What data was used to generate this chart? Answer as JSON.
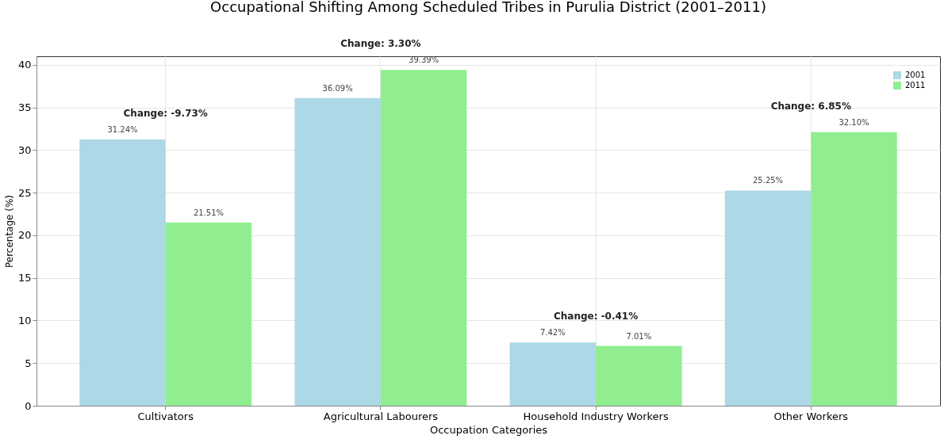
{
  "chart_data": {
    "type": "bar",
    "title": "Occupational Shifting Among Scheduled Tribes in Purulia District (2001–2011)",
    "xlabel": "Occupation Categories",
    "ylabel": "Percentage (%)",
    "categories": [
      "Cultivators",
      "Agricultural Labourers",
      "Household Industry Workers",
      "Other Workers"
    ],
    "series": [
      {
        "name": "2001",
        "color": "#add8e6",
        "values": [
          31.24,
          36.09,
          7.42,
          25.25
        ],
        "value_labels": [
          "31.24%",
          "36.09%",
          "7.42%",
          "25.25%"
        ]
      },
      {
        "name": "2011",
        "color": "#90ee90",
        "values": [
          21.51,
          39.39,
          7.01,
          32.1
        ],
        "value_labels": [
          "21.51%",
          "39.39%",
          "7.01%",
          "32.10%"
        ]
      }
    ],
    "annotations": [
      "Change: -9.73%",
      "Change: 3.30%",
      "Change: -0.41%",
      "Change: 6.85%"
    ],
    "ylim": [
      0,
      41
    ],
    "yticks": [
      0,
      5,
      10,
      15,
      20,
      25,
      30,
      35,
      40
    ],
    "grid": true,
    "legend": "top right"
  }
}
